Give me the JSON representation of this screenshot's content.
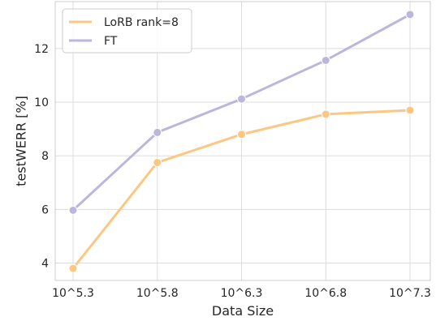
{
  "chart_data": {
    "type": "line",
    "categories": [
      "10^5.3",
      "10^5.8",
      "10^6.3",
      "10^6.8",
      "10^7.3"
    ],
    "series": [
      {
        "name": "LoRB rank=8",
        "values": [
          3.8,
          7.75,
          8.8,
          9.55,
          9.7
        ],
        "color": "#fdc782"
      },
      {
        "name": "FT",
        "values": [
          5.97,
          8.87,
          10.12,
          11.56,
          13.27
        ],
        "color": "#bcb6dc"
      }
    ],
    "title": "",
    "xlabel": "Data Size",
    "ylabel": "testWERR [%]",
    "ylim": [
      3.35,
      13.75
    ],
    "yticks": [
      4,
      6,
      8,
      10,
      12
    ],
    "grid": true,
    "legend_position": "top-left"
  }
}
